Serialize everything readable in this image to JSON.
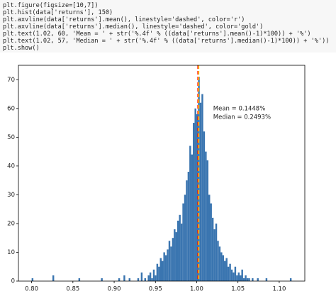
{
  "code": [
    "plt.figure(figsize=[10,7])",
    "plt.hist(data['returns'], 150)",
    "plt.axvline(data['returns'].mean(), linestyle='dashed', color='r')",
    "plt.axvline(data['returns'].median(), linestyle='dashed', color='gold')",
    "plt.text(1.02, 60, 'Mean = ' + str('%.4f' % ((data['returns'].mean()-1)*100)) + '%')",
    "plt.text(1.02, 57, 'Median = ' + str('%.4f' % ((data['returns'].median()-1)*100)) + '%'))",
    "plt.show()"
  ],
  "chart_data": {
    "type": "histogram",
    "color": "#3a75b0",
    "bins": [
      0.8,
      0.8021,
      0.8042,
      0.8063,
      0.8084,
      0.8105,
      0.8126,
      0.8147,
      0.8168,
      0.8189,
      0.821,
      0.8231,
      0.8252,
      0.8273,
      0.8294,
      0.8315,
      0.8336,
      0.8357,
      0.8378,
      0.8399,
      0.842,
      0.8441,
      0.8462,
      0.8483,
      0.8504,
      0.8525,
      0.8546,
      0.8567,
      0.8588,
      0.8609,
      0.863,
      0.8651,
      0.8672,
      0.8693,
      0.8714,
      0.8735,
      0.8756,
      0.8777,
      0.8798,
      0.8819,
      0.884,
      0.8861,
      0.8882,
      0.8903,
      0.8924,
      0.8945,
      0.8966,
      0.8987,
      0.9008,
      0.9029,
      0.905,
      0.9071,
      0.9092,
      0.9113,
      0.9134,
      0.9155,
      0.9176,
      0.9197,
      0.9218,
      0.9239,
      0.926,
      0.9281,
      0.9302,
      0.9323,
      0.9344,
      0.9365,
      0.9386,
      0.9407,
      0.9428,
      0.9449,
      0.947,
      0.9491,
      0.9512,
      0.9533,
      0.9554,
      0.9575,
      0.9596,
      0.9617,
      0.9638,
      0.9659,
      0.968,
      0.9701,
      0.9722,
      0.9743,
      0.9764,
      0.9785,
      0.9806,
      0.9827,
      0.9848,
      0.9869,
      0.989,
      0.9911,
      0.9932,
      0.9953,
      0.9974,
      0.9995,
      1.0016,
      1.0037,
      1.0058,
      1.0079,
      1.01,
      1.0121,
      1.0142,
      1.0163,
      1.0184,
      1.0205,
      1.0226,
      1.0247,
      1.0268,
      1.0289,
      1.031,
      1.0331,
      1.0352,
      1.0373,
      1.0394,
      1.0415,
      1.0436,
      1.0457,
      1.0478,
      1.0499,
      1.052,
      1.0541,
      1.0562,
      1.0583,
      1.0604,
      1.0625,
      1.0646,
      1.0667,
      1.0688,
      1.0709,
      1.073,
      1.0751,
      1.0772,
      1.0793,
      1.0814,
      1.0835,
      1.0856,
      1.0877,
      1.0898,
      1.0919,
      1.094,
      1.0961,
      1.0982,
      1.1003,
      1.1024,
      1.1045,
      1.1066,
      1.1087,
      1.1108,
      1.1129,
      1.115
    ],
    "values": [
      1,
      0,
      0,
      0,
      0,
      0,
      0,
      0,
      0,
      0,
      0,
      0,
      2,
      0,
      0,
      0,
      0,
      0,
      0,
      0,
      0,
      0,
      0,
      0,
      0,
      0,
      0,
      1,
      0,
      0,
      0,
      0,
      0,
      0,
      0,
      0,
      0,
      0,
      0,
      0,
      1,
      0,
      0,
      0,
      0,
      0,
      0,
      0,
      0,
      0,
      1,
      0,
      0,
      2,
      0,
      0,
      1,
      0,
      0,
      0,
      0,
      1,
      0,
      3,
      0,
      1,
      0,
      2,
      3,
      1,
      4,
      2,
      6,
      5,
      8,
      7,
      10,
      9,
      11,
      14,
      12,
      15,
      18,
      17,
      21,
      23,
      20,
      27,
      30,
      35,
      38,
      47,
      44,
      55,
      60,
      58,
      71,
      62,
      65,
      52,
      45,
      42,
      30,
      27,
      22,
      18,
      20,
      14,
      12,
      10,
      9,
      7,
      8,
      5,
      6,
      4,
      3,
      5,
      2,
      3,
      2,
      4,
      1,
      2,
      1,
      1,
      0,
      1,
      0,
      0,
      1,
      0,
      0,
      0,
      0,
      1,
      0,
      0,
      0,
      0,
      0,
      0,
      0,
      0,
      0,
      0,
      0,
      0,
      0,
      1
    ],
    "xlim": [
      0.784,
      1.131
    ],
    "ylim": [
      0,
      75
    ],
    "xticks": [
      {
        "value": 0.8,
        "label": "0.80"
      },
      {
        "value": 0.85,
        "label": "0.85"
      },
      {
        "value": 0.9,
        "label": "0.90"
      },
      {
        "value": 0.95,
        "label": "0.95"
      },
      {
        "value": 1.0,
        "label": "1.00"
      },
      {
        "value": 1.05,
        "label": "1.05"
      },
      {
        "value": 1.1,
        "label": "1.10"
      }
    ],
    "yticks": [
      0,
      10,
      20,
      30,
      40,
      50,
      60,
      70
    ],
    "vlines": [
      {
        "x": 1.001448,
        "color": "red"
      },
      {
        "x": 1.002493,
        "color": "gold"
      }
    ],
    "annotations": [
      {
        "x": 1.02,
        "y": 60,
        "text": "Mean = 0.1448%"
      },
      {
        "x": 1.02,
        "y": 57,
        "text": "Median = 0.2493%"
      }
    ]
  }
}
